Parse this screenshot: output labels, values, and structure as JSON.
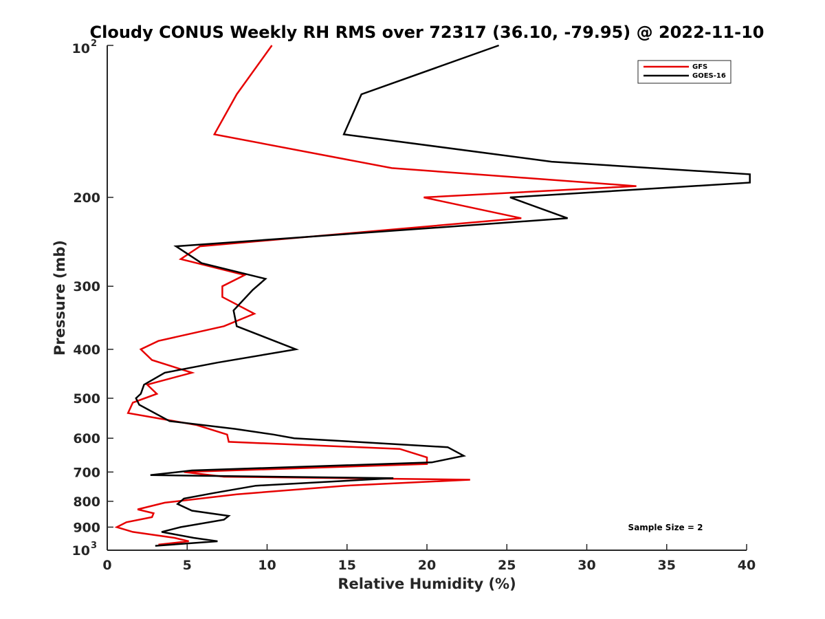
{
  "chart_data": {
    "type": "line",
    "title": "Cloudy CONUS Weekly RH RMS over 72317 (36.10, -79.95) @ 2022-11-10",
    "xlabel": "Relative Humidity (%)",
    "ylabel": "Pressure (mb)",
    "xlim": [
      0,
      40
    ],
    "ylim": [
      100,
      1000
    ],
    "y_scale": "log",
    "y_reversed": true,
    "grid": false,
    "legend_position": "top-right",
    "x_ticks": [
      0,
      5,
      10,
      15,
      20,
      25,
      30,
      35,
      40
    ],
    "x_tick_labels": [
      "0",
      "5",
      "10",
      "15",
      "20",
      "25",
      "30",
      "35",
      "40"
    ],
    "y_ticks": [
      200,
      300,
      400,
      500,
      600,
      700,
      800,
      900
    ],
    "y_tick_labels": [
      "200",
      "300",
      "400",
      "500",
      "600",
      "700",
      "800",
      "900"
    ],
    "y_tick_base_labels": [
      {
        "base": "10",
        "exp": "2"
      },
      {
        "base": "10",
        "exp": "3"
      }
    ],
    "annotation": "Sample Size = 2",
    "series": [
      {
        "name": "GFS",
        "color": "#e60000",
        "points": [
          [
            10.3,
            100
          ],
          [
            8.1,
            125
          ],
          [
            6.7,
            150
          ],
          [
            17.8,
            175
          ],
          [
            33.1,
            190
          ],
          [
            19.8,
            200
          ],
          [
            25.9,
            220
          ],
          [
            5.8,
            250
          ],
          [
            4.6,
            265
          ],
          [
            8.6,
            285
          ],
          [
            7.2,
            300
          ],
          [
            7.2,
            315
          ],
          [
            9.2,
            340
          ],
          [
            7.3,
            360
          ],
          [
            3.2,
            385
          ],
          [
            2.1,
            400
          ],
          [
            2.8,
            420
          ],
          [
            5.3,
            445
          ],
          [
            2.5,
            470
          ],
          [
            3.1,
            490
          ],
          [
            1.6,
            510
          ],
          [
            1.3,
            535
          ],
          [
            5.6,
            565
          ],
          [
            7.5,
            590
          ],
          [
            7.6,
            610
          ],
          [
            18.3,
            630
          ],
          [
            20.0,
            655
          ],
          [
            20.0,
            675
          ],
          [
            4.8,
            700
          ],
          [
            7.3,
            715
          ],
          [
            22.7,
            725
          ],
          [
            14.9,
            745
          ],
          [
            8.1,
            775
          ],
          [
            3.6,
            805
          ],
          [
            1.9,
            830
          ],
          [
            2.9,
            845
          ],
          [
            2.8,
            860
          ],
          [
            1.2,
            880
          ],
          [
            0.6,
            900
          ],
          [
            1.6,
            920
          ],
          [
            4.2,
            945
          ],
          [
            5.1,
            960
          ],
          [
            3.2,
            975
          ]
        ]
      },
      {
        "name": "GOES-16",
        "color": "#000000",
        "points": [
          [
            24.5,
            100
          ],
          [
            15.9,
            125
          ],
          [
            14.8,
            150
          ],
          [
            27.8,
            170
          ],
          [
            40.2,
            180
          ],
          [
            40.2,
            187
          ],
          [
            25.2,
            200
          ],
          [
            28.8,
            220
          ],
          [
            4.3,
            250
          ],
          [
            5.9,
            270
          ],
          [
            9.9,
            290
          ],
          [
            9.1,
            305
          ],
          [
            7.9,
            335
          ],
          [
            8.1,
            360
          ],
          [
            11.8,
            400
          ],
          [
            6.9,
            425
          ],
          [
            3.6,
            445
          ],
          [
            2.3,
            470
          ],
          [
            2.1,
            490
          ],
          [
            1.8,
            500
          ],
          [
            2.0,
            515
          ],
          [
            3.9,
            555
          ],
          [
            8.0,
            575
          ],
          [
            10.4,
            590
          ],
          [
            11.7,
            600
          ],
          [
            21.3,
            625
          ],
          [
            22.3,
            650
          ],
          [
            20.3,
            670
          ],
          [
            5.3,
            695
          ],
          [
            2.7,
            710
          ],
          [
            17.9,
            720
          ],
          [
            9.3,
            745
          ],
          [
            6.7,
            770
          ],
          [
            4.8,
            790
          ],
          [
            4.4,
            810
          ],
          [
            5.3,
            835
          ],
          [
            7.6,
            855
          ],
          [
            7.3,
            870
          ],
          [
            4.6,
            900
          ],
          [
            3.4,
            920
          ],
          [
            5.4,
            945
          ],
          [
            6.9,
            960
          ],
          [
            3.0,
            980
          ]
        ]
      }
    ]
  }
}
